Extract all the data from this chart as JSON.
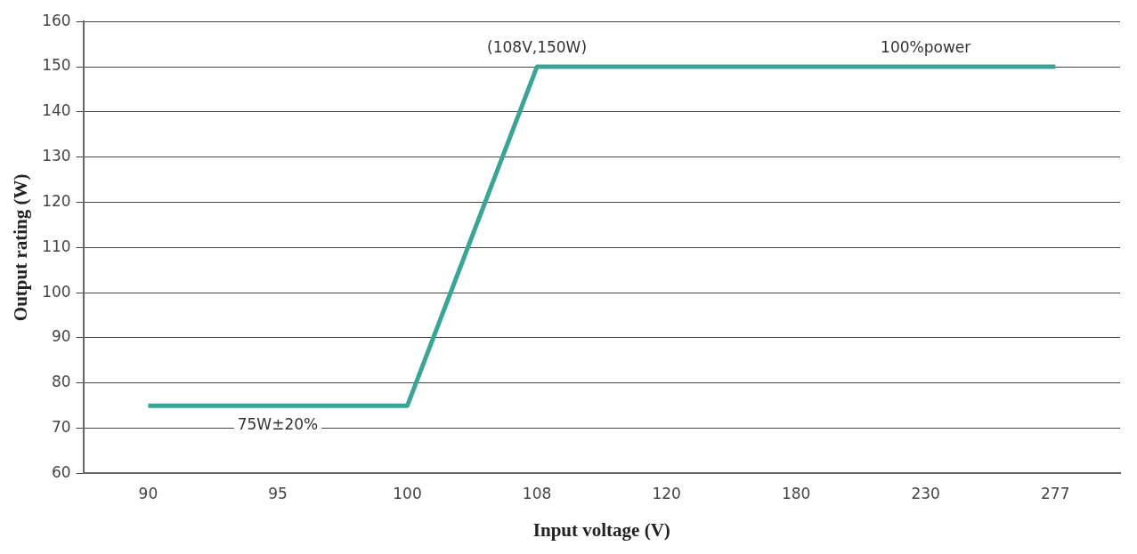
{
  "chart_data": {
    "type": "line",
    "xlabel": "Input voltage (V)",
    "ylabel": "Output rating (W)",
    "categories": [
      "90",
      "95",
      "100",
      "108",
      "120",
      "180",
      "230",
      "277"
    ],
    "series": [
      {
        "color": "#3aa597",
        "values": [
          75,
          75,
          75,
          150,
          150,
          150,
          150,
          150
        ]
      }
    ],
    "ylim": [
      60,
      160
    ],
    "yticks": [
      60,
      70,
      80,
      90,
      100,
      110,
      120,
      130,
      140,
      150,
      160
    ],
    "grid": "y",
    "legend": false,
    "marker": "none",
    "line_style": "solid",
    "annotations": [
      {
        "text": "(108V,150W)",
        "x": "108",
        "y": 150
      },
      {
        "text": "100%power",
        "x": "230",
        "y": 150
      },
      {
        "text": "75W±20%",
        "x": "95",
        "y": 75
      }
    ]
  }
}
